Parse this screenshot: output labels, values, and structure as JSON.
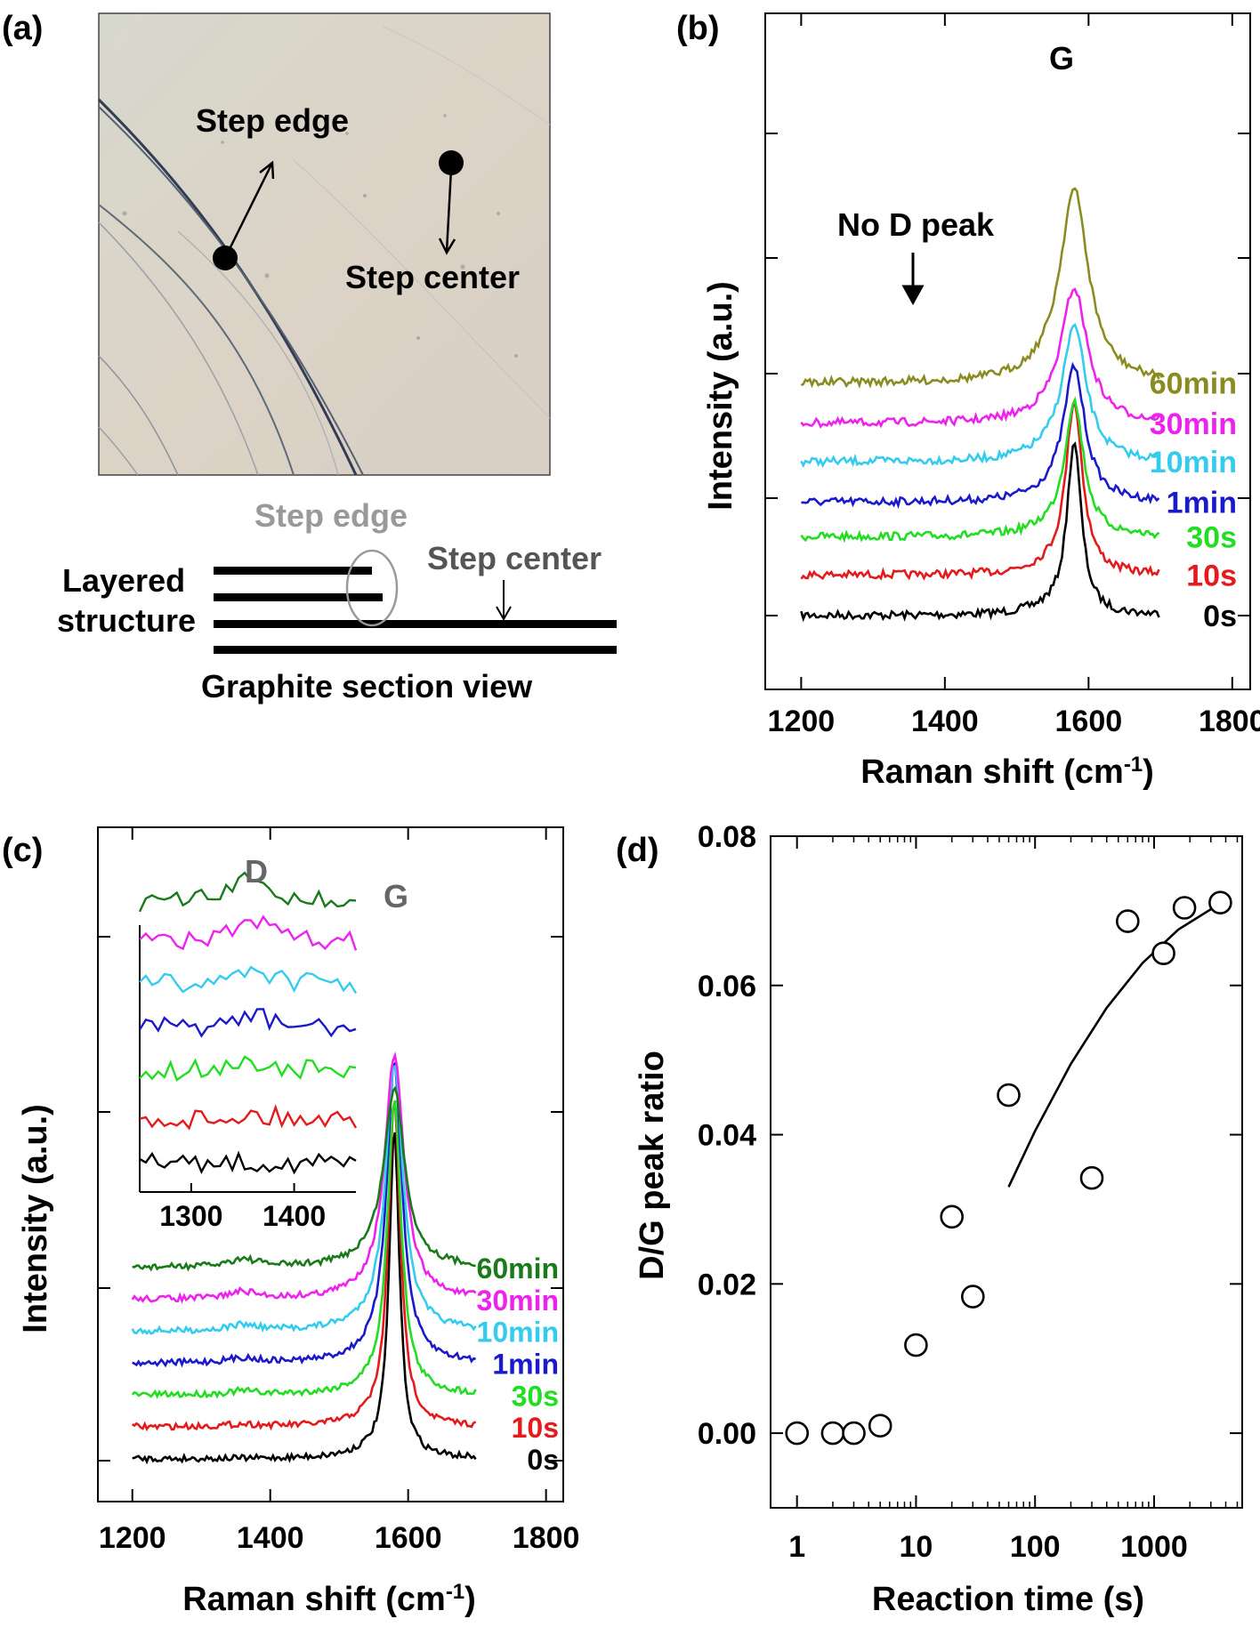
{
  "panels": {
    "a": {
      "panel_label": "(a)",
      "photo": {
        "step_edge_label": "Step edge",
        "step_center_label": "Step center"
      },
      "schematic": {
        "step_edge_label": "Step edge",
        "step_center_label": "Step center",
        "layered_line1": "Layered",
        "layered_line2": "structure",
        "caption": "Graphite section view"
      }
    },
    "b": {
      "panel_label": "(b)",
      "peak_label": "G",
      "annotation": "No D peak"
    },
    "c": {
      "panel_label": "(c)",
      "peak_label_g": "G",
      "inset_peak_label": "D"
    },
    "d": {
      "panel_label": "(d)"
    }
  },
  "colors": {
    "0s": "#000000",
    "10s": "#e41a1c",
    "30s": "#22dd22",
    "1min": "#1a1acc",
    "10min": "#33ccee",
    "30min": "#ee22ee",
    "60min_b": "#8b8b22",
    "60min_c": "#1a7a1a"
  },
  "chart_data": [
    {
      "id": "b",
      "type": "line",
      "title": "",
      "xlabel": "Raman shift (cm-1)",
      "ylabel": "Intensity (a.u.)",
      "xlim": [
        1150,
        1825
      ],
      "xticks": [
        1200,
        1400,
        1600,
        1800
      ],
      "x_range": [
        1200,
        1700
      ],
      "peak_position": 1580,
      "series": [
        {
          "name": "0s",
          "offset": 0.0,
          "peak_height": 1.78
        },
        {
          "name": "10s",
          "offset": 0.42,
          "peak_height": 1.78
        },
        {
          "name": "30s",
          "offset": 0.82,
          "peak_height": 1.38
        },
        {
          "name": "1min",
          "offset": 1.18,
          "peak_height": 1.38
        },
        {
          "name": "10min",
          "offset": 1.6,
          "peak_height": 1.38
        },
        {
          "name": "30min",
          "offset": 2.0,
          "peak_height": 1.38
        },
        {
          "name": "60min",
          "offset": 2.42,
          "peak_height": 1.98
        }
      ]
    },
    {
      "id": "c",
      "type": "line",
      "title": "",
      "xlabel": "Raman shift (cm-1)",
      "ylabel": "Intensity (a.u.)",
      "xlim": [
        1150,
        1825
      ],
      "xticks": [
        1200,
        1400,
        1600,
        1800
      ],
      "x_range": [
        1200,
        1700
      ],
      "peak_position": 1580,
      "d_peak_position": 1360,
      "series": [
        {
          "name": "0s",
          "offset": 0.0,
          "peak_height": 0.82,
          "d_height": 0.0
        },
        {
          "name": "10s",
          "offset": 0.28,
          "peak_height": 0.9,
          "d_height": 0.02
        },
        {
          "name": "30s",
          "offset": 0.56,
          "peak_height": 0.85,
          "d_height": 0.03
        },
        {
          "name": "1min",
          "offset": 0.84,
          "peak_height": 0.95,
          "d_height": 0.04
        },
        {
          "name": "10min",
          "offset": 1.12,
          "peak_height": 0.9,
          "d_height": 0.05
        },
        {
          "name": "30min",
          "offset": 1.4,
          "peak_height": 0.88,
          "d_height": 0.06
        },
        {
          "name": "60min",
          "offset": 1.68,
          "peak_height": 0.7,
          "d_height": 0.07
        }
      ],
      "inset": {
        "xlim": [
          1250,
          1460
        ],
        "xticks": [
          1300,
          1400
        ],
        "label": "D"
      }
    },
    {
      "id": "d",
      "type": "scatter",
      "title": "",
      "xlabel": "Reaction time (s)",
      "ylabel": "D/G peak ratio",
      "xscale": "log",
      "xlim": [
        0.6,
        5500
      ],
      "ylim": [
        -0.01,
        0.08
      ],
      "xticks": [
        1,
        10,
        100,
        1000
      ],
      "xtick_labels": [
        "1",
        "10",
        "100",
        "1000"
      ],
      "yticks": [
        0.0,
        0.02,
        0.04,
        0.06,
        0.08
      ],
      "ytick_labels": [
        "0.00",
        "0.02",
        "0.04",
        "0.06",
        "0.08"
      ],
      "x": [
        1,
        2,
        3,
        5,
        10,
        20,
        30,
        60,
        300,
        600,
        1200,
        1800,
        3600
      ],
      "y": [
        0.0,
        0.0,
        0.0,
        0.001,
        0.0118,
        0.029,
        0.0183,
        0.0453,
        0.0342,
        0.0686,
        0.0643,
        0.0704,
        0.0711
      ],
      "fit": {
        "x": [
          60,
          100,
          200,
          400,
          800,
          1600,
          3600
        ],
        "y": [
          0.033,
          0.0405,
          0.0495,
          0.057,
          0.063,
          0.0675,
          0.071
        ]
      }
    }
  ]
}
